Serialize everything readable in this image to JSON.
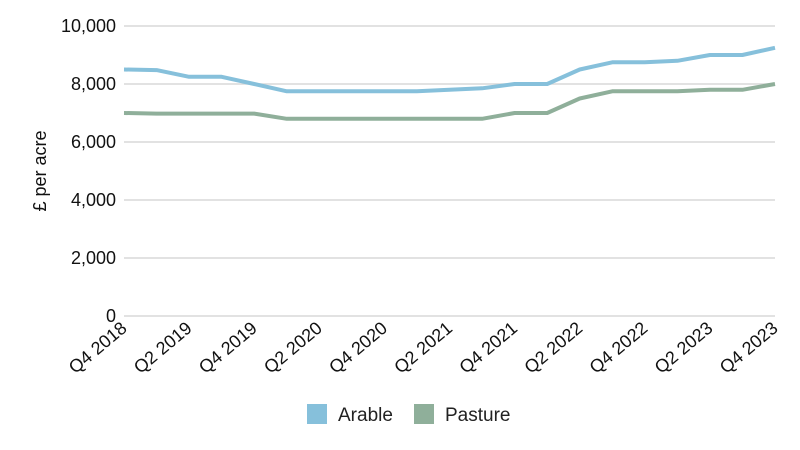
{
  "chart_data": {
    "type": "line",
    "title": "",
    "xlabel": "",
    "ylabel": "£ per acre",
    "ylim": [
      0,
      10000
    ],
    "yticks": [
      0,
      2000,
      4000,
      6000,
      8000,
      10000
    ],
    "ytick_labels": [
      "0",
      "2,000",
      "4,000",
      "6,000",
      "8,000",
      "10,000"
    ],
    "grid": "horizontal",
    "legend_position": "bottom",
    "categories": [
      "Q4 2018",
      "Q1 2019",
      "Q2 2019",
      "Q3 2019",
      "Q4 2019",
      "Q1 2020",
      "Q2 2020",
      "Q3 2020",
      "Q4 2020",
      "Q1 2021",
      "Q2 2021",
      "Q3 2021",
      "Q4 2021",
      "Q1 2022",
      "Q2 2022",
      "Q3 2022",
      "Q4 2022",
      "Q1 2023",
      "Q2 2023",
      "Q3 2023",
      "Q4 2023"
    ],
    "xtick_labels": [
      "Q4 2018",
      "Q2 2019",
      "Q4 2019",
      "Q2 2020",
      "Q4 2020",
      "Q2 2021",
      "Q4 2021",
      "Q2 2022",
      "Q4 2022",
      "Q2 2023",
      "Q4 2023"
    ],
    "series": [
      {
        "name": "Arable",
        "color": "#86c0db",
        "values": [
          8500,
          8480,
          8250,
          8250,
          8000,
          7750,
          7750,
          7750,
          7750,
          7750,
          7800,
          7850,
          8000,
          8000,
          8500,
          8750,
          8750,
          8800,
          9000,
          9000,
          9250
        ]
      },
      {
        "name": "Pasture",
        "color": "#8faf9a",
        "values": [
          7000,
          6980,
          6980,
          6980,
          6980,
          6800,
          6800,
          6800,
          6800,
          6800,
          6800,
          6800,
          7000,
          7000,
          7500,
          7750,
          7750,
          7750,
          7800,
          7800,
          8000
        ]
      }
    ]
  }
}
